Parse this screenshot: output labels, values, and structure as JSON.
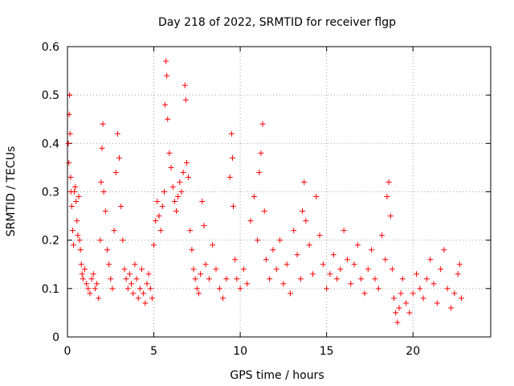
{
  "chart_data": {
    "type": "scatter",
    "title": "Day 218 of 2022, SRMTID for receiver flgp",
    "xlabel": "GPS time / hours",
    "ylabel": "SRMTID / TECUs",
    "xlim": [
      0,
      24.5
    ],
    "ylim": [
      0,
      0.6
    ],
    "xticks": [
      0,
      5,
      10,
      15,
      20
    ],
    "xtick_labels": [
      "0",
      "5",
      "10",
      "15",
      "20"
    ],
    "yticks": [
      0,
      0.1,
      0.2,
      0.3,
      0.4,
      0.5,
      0.6
    ],
    "ytick_labels": [
      "0",
      "0.1",
      "0.2",
      "0.3",
      "0.4",
      "0.5",
      "0.6"
    ],
    "grid": true,
    "marker": "+",
    "color": "#ff0000",
    "series": [
      {
        "name": "SRMTID",
        "points": [
          [
            0.05,
            0.4
          ],
          [
            0.08,
            0.36
          ],
          [
            0.1,
            0.46
          ],
          [
            0.12,
            0.5
          ],
          [
            0.15,
            0.42
          ],
          [
            0.18,
            0.33
          ],
          [
            0.2,
            0.3
          ],
          [
            0.25,
            0.27
          ],
          [
            0.3,
            0.22
          ],
          [
            0.35,
            0.19
          ],
          [
            0.4,
            0.3
          ],
          [
            0.45,
            0.31
          ],
          [
            0.5,
            0.28
          ],
          [
            0.55,
            0.24
          ],
          [
            0.6,
            0.21
          ],
          [
            0.65,
            0.29
          ],
          [
            0.7,
            0.2
          ],
          [
            0.75,
            0.18
          ],
          [
            0.8,
            0.15
          ],
          [
            0.85,
            0.13
          ],
          [
            0.9,
            0.12
          ],
          [
            1.0,
            0.14
          ],
          [
            1.1,
            0.11
          ],
          [
            1.2,
            0.1
          ],
          [
            1.3,
            0.09
          ],
          [
            1.4,
            0.12
          ],
          [
            1.5,
            0.13
          ],
          [
            1.6,
            0.1
          ],
          [
            1.7,
            0.11
          ],
          [
            1.8,
            0.08
          ],
          [
            1.9,
            0.2
          ],
          [
            1.95,
            0.32
          ],
          [
            2.0,
            0.39
          ],
          [
            2.05,
            0.44
          ],
          [
            2.1,
            0.3
          ],
          [
            2.2,
            0.26
          ],
          [
            2.3,
            0.18
          ],
          [
            2.4,
            0.15
          ],
          [
            2.5,
            0.12
          ],
          [
            2.6,
            0.1
          ],
          [
            2.7,
            0.22
          ],
          [
            2.8,
            0.34
          ],
          [
            2.9,
            0.42
          ],
          [
            3.0,
            0.37
          ],
          [
            3.1,
            0.27
          ],
          [
            3.2,
            0.2
          ],
          [
            3.3,
            0.14
          ],
          [
            3.4,
            0.12
          ],
          [
            3.5,
            0.1
          ],
          [
            3.6,
            0.13
          ],
          [
            3.7,
            0.11
          ],
          [
            3.8,
            0.09
          ],
          [
            3.9,
            0.15
          ],
          [
            4.0,
            0.12
          ],
          [
            4.1,
            0.08
          ],
          [
            4.2,
            0.1
          ],
          [
            4.3,
            0.14
          ],
          [
            4.4,
            0.09
          ],
          [
            4.5,
            0.07
          ],
          [
            4.6,
            0.11
          ],
          [
            4.7,
            0.13
          ],
          [
            4.8,
            0.1
          ],
          [
            4.9,
            0.08
          ],
          [
            5.0,
            0.19
          ],
          [
            5.1,
            0.24
          ],
          [
            5.2,
            0.28
          ],
          [
            5.3,
            0.25
          ],
          [
            5.4,
            0.22
          ],
          [
            5.5,
            0.27
          ],
          [
            5.6,
            0.3
          ],
          [
            5.65,
            0.48
          ],
          [
            5.7,
            0.57
          ],
          [
            5.75,
            0.54
          ],
          [
            5.8,
            0.45
          ],
          [
            5.9,
            0.38
          ],
          [
            6.0,
            0.35
          ],
          [
            6.1,
            0.31
          ],
          [
            6.2,
            0.28
          ],
          [
            6.3,
            0.26
          ],
          [
            6.4,
            0.29
          ],
          [
            6.5,
            0.32
          ],
          [
            6.6,
            0.3
          ],
          [
            6.7,
            0.34
          ],
          [
            6.8,
            0.52
          ],
          [
            6.85,
            0.49
          ],
          [
            6.9,
            0.36
          ],
          [
            7.0,
            0.33
          ],
          [
            7.1,
            0.22
          ],
          [
            7.2,
            0.18
          ],
          [
            7.3,
            0.14
          ],
          [
            7.4,
            0.12
          ],
          [
            7.5,
            0.1
          ],
          [
            7.6,
            0.09
          ],
          [
            7.7,
            0.13
          ],
          [
            7.8,
            0.28
          ],
          [
            7.9,
            0.23
          ],
          [
            8.0,
            0.15
          ],
          [
            8.2,
            0.12
          ],
          [
            8.4,
            0.19
          ],
          [
            8.6,
            0.14
          ],
          [
            8.8,
            0.1
          ],
          [
            9.0,
            0.08
          ],
          [
            9.2,
            0.12
          ],
          [
            9.4,
            0.33
          ],
          [
            9.5,
            0.42
          ],
          [
            9.55,
            0.37
          ],
          [
            9.6,
            0.27
          ],
          [
            9.7,
            0.16
          ],
          [
            9.8,
            0.12
          ],
          [
            10.0,
            0.1
          ],
          [
            10.2,
            0.14
          ],
          [
            10.4,
            0.11
          ],
          [
            10.6,
            0.24
          ],
          [
            10.8,
            0.29
          ],
          [
            11.0,
            0.2
          ],
          [
            11.1,
            0.34
          ],
          [
            11.2,
            0.38
          ],
          [
            11.3,
            0.44
          ],
          [
            11.4,
            0.26
          ],
          [
            11.5,
            0.16
          ],
          [
            11.7,
            0.12
          ],
          [
            11.9,
            0.18
          ],
          [
            12.1,
            0.14
          ],
          [
            12.3,
            0.2
          ],
          [
            12.5,
            0.11
          ],
          [
            12.7,
            0.15
          ],
          [
            12.9,
            0.09
          ],
          [
            13.1,
            0.22
          ],
          [
            13.3,
            0.17
          ],
          [
            13.5,
            0.12
          ],
          [
            13.6,
            0.26
          ],
          [
            13.7,
            0.32
          ],
          [
            13.8,
            0.24
          ],
          [
            14.0,
            0.19
          ],
          [
            14.2,
            0.13
          ],
          [
            14.4,
            0.29
          ],
          [
            14.6,
            0.21
          ],
          [
            14.8,
            0.15
          ],
          [
            15.0,
            0.1
          ],
          [
            15.2,
            0.13
          ],
          [
            15.4,
            0.17
          ],
          [
            15.6,
            0.12
          ],
          [
            15.8,
            0.14
          ],
          [
            16.0,
            0.22
          ],
          [
            16.2,
            0.16
          ],
          [
            16.4,
            0.11
          ],
          [
            16.6,
            0.15
          ],
          [
            16.8,
            0.19
          ],
          [
            17.0,
            0.12
          ],
          [
            17.2,
            0.09
          ],
          [
            17.4,
            0.14
          ],
          [
            17.6,
            0.18
          ],
          [
            17.8,
            0.12
          ],
          [
            18.0,
            0.1
          ],
          [
            18.2,
            0.21
          ],
          [
            18.4,
            0.16
          ],
          [
            18.5,
            0.29
          ],
          [
            18.6,
            0.32
          ],
          [
            18.7,
            0.25
          ],
          [
            18.8,
            0.14
          ],
          [
            18.9,
            0.08
          ],
          [
            19.0,
            0.05
          ],
          [
            19.1,
            0.03
          ],
          [
            19.2,
            0.06
          ],
          [
            19.3,
            0.09
          ],
          [
            19.4,
            0.12
          ],
          [
            19.6,
            0.07
          ],
          [
            19.8,
            0.05
          ],
          [
            20.0,
            0.09
          ],
          [
            20.2,
            0.13
          ],
          [
            20.4,
            0.1
          ],
          [
            20.6,
            0.08
          ],
          [
            20.8,
            0.12
          ],
          [
            21.0,
            0.16
          ],
          [
            21.2,
            0.11
          ],
          [
            21.4,
            0.07
          ],
          [
            21.6,
            0.14
          ],
          [
            21.8,
            0.18
          ],
          [
            22.0,
            0.1
          ],
          [
            22.2,
            0.06
          ],
          [
            22.4,
            0.09
          ],
          [
            22.6,
            0.13
          ],
          [
            22.7,
            0.15
          ],
          [
            22.8,
            0.08
          ]
        ]
      }
    ]
  }
}
